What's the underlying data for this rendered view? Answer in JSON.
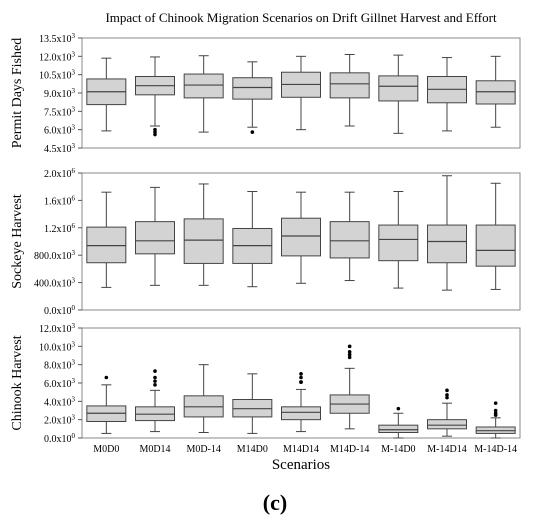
{
  "figure": {
    "panel_label": "(c)"
  },
  "chart_data": {
    "type": "box",
    "title": "Impact of Chinook Migration Scenarios on Drift Gillnet Harvest and Effort",
    "xlabel": "Scenarios",
    "categories": [
      "M0D0",
      "M0D14",
      "M0D-14",
      "M14D0",
      "M14D14",
      "M14D-14",
      "M-14D0",
      "M-14D14",
      "M-14D-14"
    ],
    "panels": [
      {
        "ylabel": "Permit Days Fished",
        "ylim": [
          4500,
          13500
        ],
        "yticks": [
          4500,
          6000,
          7500,
          9000,
          10500,
          12000,
          13500
        ],
        "ytick_labels": [
          {
            "mant": "4.5x10",
            "exp": "3"
          },
          {
            "mant": "6.0x10",
            "exp": "3"
          },
          {
            "mant": "7.5x10",
            "exp": "3"
          },
          {
            "mant": "9.0x10",
            "exp": "3"
          },
          {
            "mant": "10.5x10",
            "exp": "3"
          },
          {
            "mant": "12.0x10",
            "exp": "3"
          },
          {
            "mant": "13.5x10",
            "exp": "3"
          }
        ],
        "boxes": [
          {
            "whislo": 5900,
            "q1": 8050,
            "med": 9100,
            "q3": 10150,
            "whishi": 11850,
            "fliers": []
          },
          {
            "whislo": 6300,
            "q1": 8850,
            "med": 9600,
            "q3": 10350,
            "whishi": 11950,
            "fliers": [
              6000,
              5800,
              5600
            ]
          },
          {
            "whislo": 5800,
            "q1": 8600,
            "med": 9650,
            "q3": 10550,
            "whishi": 12050,
            "fliers": []
          },
          {
            "whislo": 6200,
            "q1": 8500,
            "med": 9450,
            "q3": 10250,
            "whishi": 11550,
            "fliers": [
              5800
            ]
          },
          {
            "whislo": 6000,
            "q1": 8650,
            "med": 9700,
            "q3": 10700,
            "whishi": 12000,
            "fliers": []
          },
          {
            "whislo": 6300,
            "q1": 8600,
            "med": 9750,
            "q3": 10650,
            "whishi": 12150,
            "fliers": []
          },
          {
            "whislo": 5700,
            "q1": 8350,
            "med": 9550,
            "q3": 10400,
            "whishi": 12100,
            "fliers": []
          },
          {
            "whislo": 5900,
            "q1": 8200,
            "med": 9300,
            "q3": 10350,
            "whishi": 11900,
            "fliers": []
          },
          {
            "whislo": 6200,
            "q1": 8100,
            "med": 9100,
            "q3": 10000,
            "whishi": 12000,
            "fliers": []
          }
        ]
      },
      {
        "ylabel": "Sockeye Harvest",
        "ylim": [
          0,
          2000000
        ],
        "yticks": [
          0,
          400000,
          800000,
          1200000,
          1600000,
          2000000
        ],
        "ytick_labels": [
          {
            "mant": "0.0x10",
            "exp": "0"
          },
          {
            "mant": "400.0x10",
            "exp": "3"
          },
          {
            "mant": "800.0x10",
            "exp": "3"
          },
          {
            "mant": "1.2x10",
            "exp": "6"
          },
          {
            "mant": "1.6x10",
            "exp": "6"
          },
          {
            "mant": "2.0x10",
            "exp": "6"
          }
        ],
        "boxes": [
          {
            "whislo": 330000,
            "q1": 690000,
            "med": 940000,
            "q3": 1210000,
            "whishi": 1720000,
            "fliers": []
          },
          {
            "whislo": 360000,
            "q1": 820000,
            "med": 1010000,
            "q3": 1290000,
            "whishi": 1790000,
            "fliers": []
          },
          {
            "whislo": 360000,
            "q1": 680000,
            "med": 1020000,
            "q3": 1330000,
            "whishi": 1840000,
            "fliers": []
          },
          {
            "whislo": 340000,
            "q1": 680000,
            "med": 940000,
            "q3": 1190000,
            "whishi": 1730000,
            "fliers": []
          },
          {
            "whislo": 390000,
            "q1": 790000,
            "med": 1080000,
            "q3": 1340000,
            "whishi": 1720000,
            "fliers": []
          },
          {
            "whislo": 430000,
            "q1": 760000,
            "med": 1010000,
            "q3": 1290000,
            "whishi": 1720000,
            "fliers": []
          },
          {
            "whislo": 320000,
            "q1": 720000,
            "med": 1030000,
            "q3": 1240000,
            "whishi": 1730000,
            "fliers": []
          },
          {
            "whislo": 290000,
            "q1": 690000,
            "med": 1000000,
            "q3": 1240000,
            "whishi": 1960000,
            "fliers": []
          },
          {
            "whislo": 300000,
            "q1": 640000,
            "med": 870000,
            "q3": 1240000,
            "whishi": 1850000,
            "fliers": []
          }
        ]
      },
      {
        "ylabel": "Chinook Harvest",
        "ylim": [
          0,
          12000
        ],
        "yticks": [
          0,
          2000,
          4000,
          6000,
          8000,
          10000,
          12000
        ],
        "ytick_labels": [
          {
            "mant": "0.0x10",
            "exp": "0"
          },
          {
            "mant": "2.0x10",
            "exp": "3"
          },
          {
            "mant": "4.0x10",
            "exp": "3"
          },
          {
            "mant": "6.0x10",
            "exp": "3"
          },
          {
            "mant": "8.0x10",
            "exp": "3"
          },
          {
            "mant": "10.0x10",
            "exp": "3"
          },
          {
            "mant": "12.0x10",
            "exp": "3"
          }
        ],
        "boxes": [
          {
            "whislo": 500,
            "q1": 1800,
            "med": 2700,
            "q3": 3500,
            "whishi": 5800,
            "fliers": [
              6600
            ]
          },
          {
            "whislo": 700,
            "q1": 1900,
            "med": 2600,
            "q3": 3400,
            "whishi": 5200,
            "fliers": [
              7300,
              6600,
              6200,
              5800
            ]
          },
          {
            "whislo": 600,
            "q1": 2300,
            "med": 3400,
            "q3": 4600,
            "whishi": 8000,
            "fliers": []
          },
          {
            "whislo": 500,
            "q1": 2300,
            "med": 3200,
            "q3": 4200,
            "whishi": 7000,
            "fliers": []
          },
          {
            "whislo": 700,
            "q1": 2000,
            "med": 2800,
            "q3": 3400,
            "whishi": 5300,
            "fliers": [
              7000,
              6600,
              6100,
              6100
            ]
          },
          {
            "whislo": 1000,
            "q1": 2700,
            "med": 3700,
            "q3": 4700,
            "whishi": 7600,
            "fliers": [
              10000,
              9400,
              9100,
              8800
            ]
          },
          {
            "whislo": 0,
            "q1": 600,
            "med": 900,
            "q3": 1400,
            "whishi": 2700,
            "fliers": [
              3200
            ]
          },
          {
            "whislo": 200,
            "q1": 1000,
            "med": 1400,
            "q3": 2000,
            "whishi": 3800,
            "fliers": [
              5200,
              4700,
              4400
            ]
          },
          {
            "whislo": 0,
            "q1": 500,
            "med": 800,
            "q3": 1200,
            "whishi": 2200,
            "fliers": [
              3800,
              3000,
              2700,
              2500
            ]
          }
        ]
      }
    ],
    "colors": {
      "box_fill": "#d3d3d3",
      "line": "#444444",
      "flier": "#000000"
    }
  }
}
